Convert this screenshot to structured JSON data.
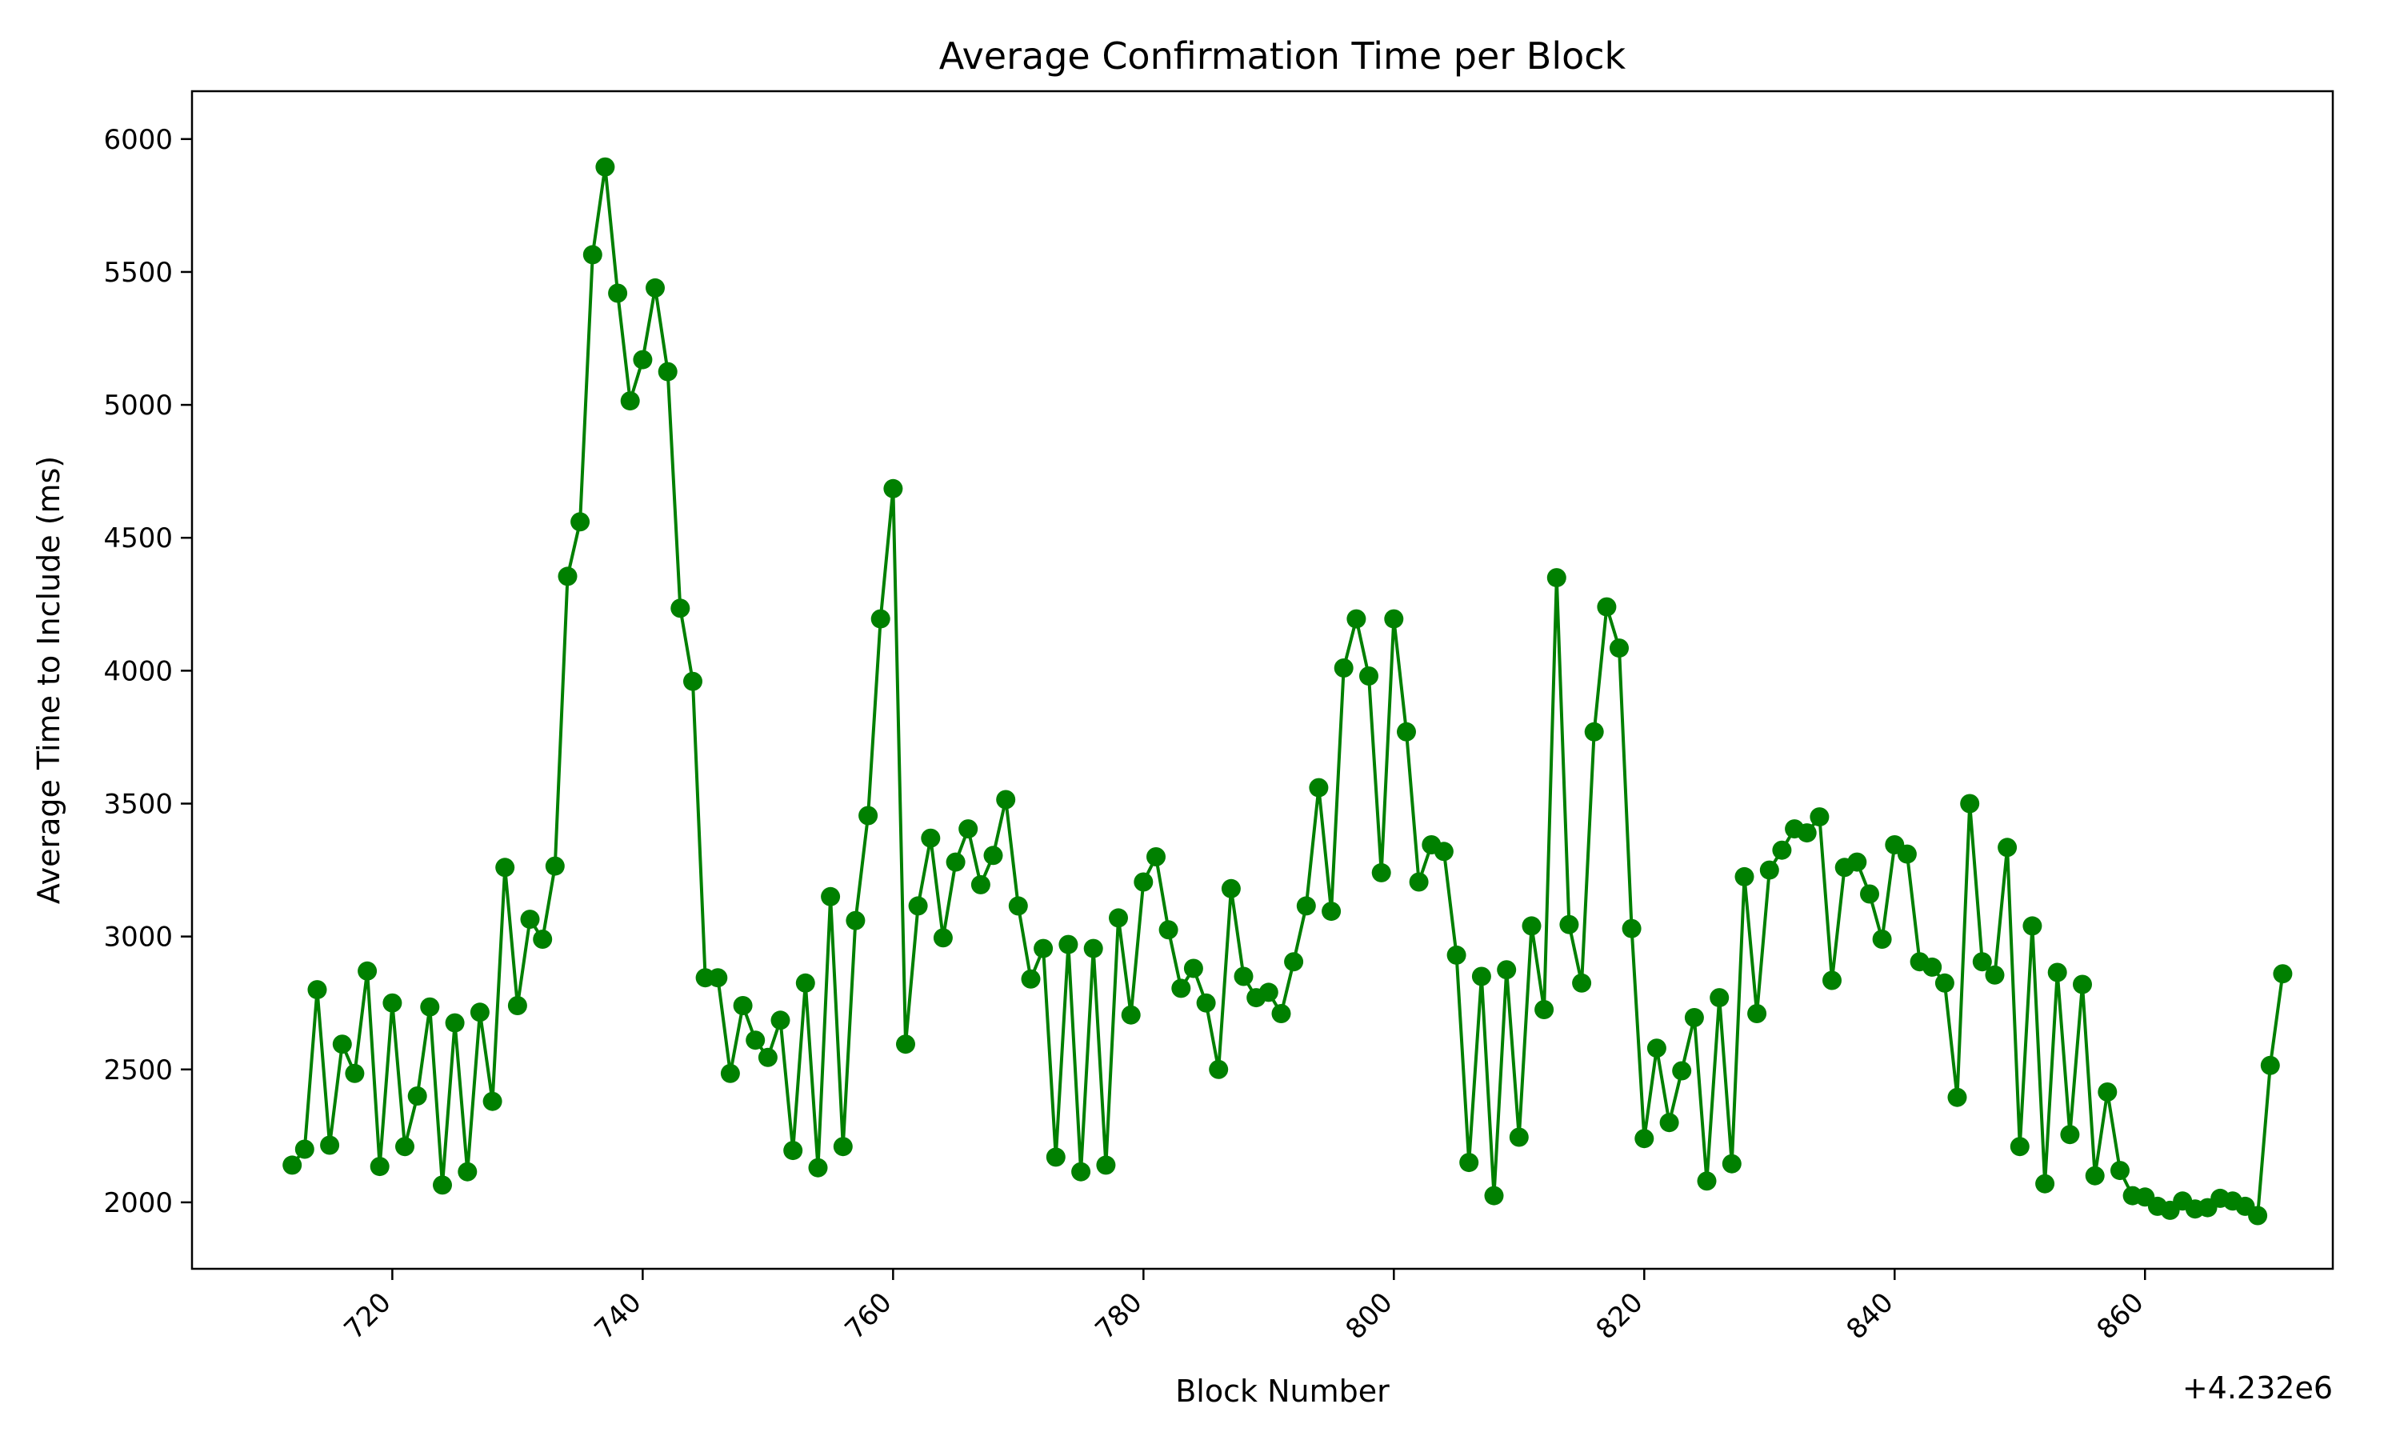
{
  "chart_data": {
    "type": "line",
    "title": "Average Confirmation Time per Block",
    "xlabel": "Block Number",
    "ylabel": "Average Time to Include (ms)",
    "x_offset_label": "+4.232e6",
    "x_offset": 4232000,
    "xlim": [
      4232704,
      4232875
    ],
    "ylim": [
      1750,
      6180
    ],
    "x_ticks": [
      720,
      740,
      760,
      780,
      800,
      820,
      840,
      860
    ],
    "x_tick_labels": [
      "720",
      "740",
      "760",
      "780",
      "800",
      "820",
      "840",
      "860"
    ],
    "y_ticks": [
      2000,
      2500,
      3000,
      3500,
      4000,
      4500,
      5000,
      5500,
      6000
    ],
    "y_tick_labels": [
      "2000",
      "2500",
      "3000",
      "3500",
      "4000",
      "4500",
      "5000",
      "5500",
      "6000"
    ],
    "grid": false,
    "color": "#008000",
    "marker": "circle",
    "x_start": 4232712,
    "values": [
      2140,
      2200,
      2800,
      2215,
      2595,
      2485,
      2870,
      2135,
      2750,
      2210,
      2400,
      2735,
      2065,
      2675,
      2115,
      2715,
      2380,
      3260,
      2740,
      3065,
      2990,
      3265,
      4355,
      4560,
      5565,
      5895,
      5420,
      5015,
      5170,
      5440,
      5125,
      4235,
      3960,
      2845,
      2845,
      2485,
      2740,
      2610,
      2545,
      2685,
      2195,
      2825,
      2130,
      3150,
      2210,
      3060,
      3455,
      4195,
      4685,
      2595,
      3115,
      3370,
      2995,
      3280,
      3405,
      3195,
      3305,
      3515,
      3115,
      2840,
      2955,
      2170,
      2970,
      2115,
      2955,
      2140,
      3070,
      2705,
      3205,
      3300,
      3025,
      2805,
      2880,
      2750,
      2500,
      3180,
      2850,
      2770,
      2790,
      2710,
      2905,
      3115,
      3560,
      3095,
      4010,
      4195,
      3980,
      3240,
      4195,
      3770,
      3205,
      3345,
      3320,
      2930,
      2150,
      2850,
      2025,
      2875,
      2245,
      3040,
      2725,
      4350,
      3045,
      2825,
      3770,
      4240,
      4085,
      3030,
      2240,
      2580,
      2300,
      2495,
      2695,
      2080,
      2770,
      2145,
      3225,
      2710,
      3250,
      3325,
      3405,
      3390,
      3450,
      2835,
      3260,
      3280,
      3160,
      2990,
      3345,
      3310,
      2905,
      2885,
      2825,
      2395,
      3500,
      2905,
      2855,
      3335,
      2210,
      3040,
      2070,
      2865,
      2255,
      2820,
      2100,
      2415,
      2120,
      2025,
      2020,
      1985,
      1970,
      2005,
      1975,
      1980,
      2015,
      2005,
      1985,
      1950,
      2515,
      2860
    ]
  }
}
